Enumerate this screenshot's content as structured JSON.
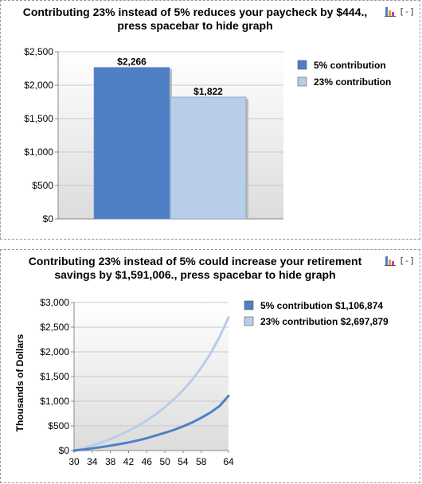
{
  "panels": [
    {
      "title_line1": "Contributing 23% instead of 5% reduces your paycheck by $444.,",
      "title_line2": "press spacebar to hide graph",
      "toggle": "[-]",
      "icon": "bar-chart-icon"
    },
    {
      "title_line1": "Contributing 23% instead of 5% could increase your retirement",
      "title_line2": "savings by $1,591,006., press spacebar to hide graph",
      "toggle": "[-]",
      "icon": "bar-chart-icon"
    }
  ],
  "colors": {
    "series_a": "#4f7fc5",
    "series_b": "#b8cde9",
    "plot_bg_top": "#ffffff",
    "plot_bg_bottom": "#dcdcdc"
  },
  "chart_data": [
    {
      "type": "bar",
      "categories": [
        "5% contribution",
        "23% contribution"
      ],
      "values": [
        2266,
        1822
      ],
      "data_labels": [
        "$2,266",
        "$1,822"
      ],
      "legend": [
        "5% contribution",
        "23% contribution"
      ],
      "legend_position": "right",
      "ylim": [
        0,
        2500
      ],
      "yticks": [
        0,
        500,
        1000,
        1500,
        2000,
        2500
      ],
      "ytick_labels": [
        "$0",
        "$500",
        "$1,000",
        "$1,500",
        "$2,000",
        "$2,500"
      ],
      "grid": true
    },
    {
      "type": "line",
      "ylabel": "Thousands of Dollars",
      "x": [
        30,
        32,
        34,
        36,
        38,
        40,
        42,
        44,
        46,
        48,
        50,
        52,
        54,
        56,
        58,
        60,
        62,
        64
      ],
      "series": [
        {
          "name": "5% contribution $1,106,874",
          "values": [
            0,
            20,
            45,
            70,
            100,
            130,
            165,
            205,
            250,
            305,
            360,
            420,
            490,
            570,
            665,
            770,
            900,
            1107
          ]
        },
        {
          "name": "23% contribution $2,697,879",
          "values": [
            0,
            45,
            105,
            165,
            235,
            315,
            400,
            500,
            610,
            735,
            880,
            1040,
            1225,
            1435,
            1680,
            1960,
            2300,
            2698
          ]
        }
      ],
      "xticks": [
        30,
        34,
        38,
        42,
        46,
        50,
        54,
        58,
        64
      ],
      "ylim": [
        0,
        3000
      ],
      "yticks": [
        0,
        500,
        1000,
        1500,
        2000,
        2500,
        3000
      ],
      "ytick_labels": [
        "$0",
        "$500",
        "$1,000",
        "$1,500",
        "$2,000",
        "$2,500",
        "$3,000"
      ],
      "legend_position": "right",
      "grid": true
    }
  ]
}
